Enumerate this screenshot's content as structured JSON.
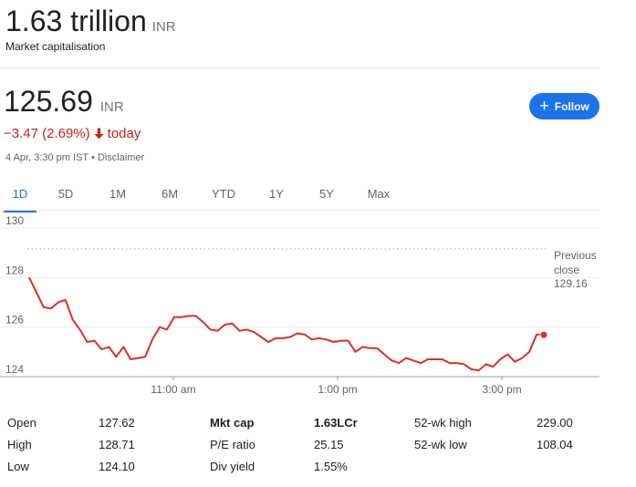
{
  "market_cap": {
    "value": "1.63 trillion",
    "currency": "INR",
    "label": "Market capitalisation"
  },
  "price": {
    "value": "125.69",
    "currency": "INR",
    "change": "−3.47 (2.69%)",
    "change_suffix": "today",
    "arrow_icon": "arrow-down-icon",
    "timestamp": "4 Apr, 3:30 pm IST • Disclaimer",
    "color_negative": "#c5221f"
  },
  "follow_button": {
    "label": "Follow",
    "icon": "plus-icon",
    "color": "#1a73e8"
  },
  "range_tabs": [
    "1D",
    "5D",
    "1M",
    "6M",
    "YTD",
    "1Y",
    "5Y",
    "Max"
  ],
  "selected_tab": "1D",
  "chart_data": {
    "type": "line",
    "y_ticks": [
      "130",
      "128",
      "126",
      "124"
    ],
    "x_ticks": [
      "11:00 am",
      "1:00 pm",
      "3:00 pm"
    ],
    "ylim": [
      124,
      130
    ],
    "previous_close": {
      "label_line1": "Previous",
      "label_line2": "close",
      "value": "129.16"
    },
    "line_color": "#d93025",
    "series": [
      {
        "x": [
          0,
          1,
          2,
          3,
          4,
          5,
          6,
          7,
          8,
          9,
          10,
          11,
          12,
          13,
          14,
          15,
          16,
          17,
          18,
          19,
          20,
          21,
          22,
          23,
          24,
          25,
          26,
          27,
          28,
          29,
          30,
          31,
          32,
          33,
          34,
          35,
          36,
          37,
          38,
          39,
          40,
          41,
          42,
          43,
          44,
          45,
          46,
          47,
          48,
          49,
          50,
          51,
          52,
          53,
          54,
          55,
          56,
          57,
          58,
          59,
          60,
          61,
          62,
          63,
          64,
          65,
          66,
          67,
          68,
          69,
          70,
          71
        ],
        "values": [
          128.0,
          127.4,
          126.8,
          126.75,
          127.0,
          127.1,
          126.3,
          125.9,
          125.4,
          125.45,
          125.1,
          125.2,
          124.8,
          125.2,
          124.7,
          124.75,
          124.8,
          125.5,
          126.0,
          125.9,
          126.4,
          126.4,
          126.45,
          126.45,
          126.2,
          125.9,
          125.85,
          126.1,
          126.15,
          125.85,
          125.9,
          125.8,
          125.6,
          125.4,
          125.55,
          125.55,
          125.6,
          125.75,
          125.7,
          125.5,
          125.55,
          125.5,
          125.4,
          125.45,
          125.45,
          125.0,
          125.2,
          125.15,
          125.15,
          124.9,
          124.65,
          124.55,
          124.75,
          124.65,
          124.55,
          124.7,
          124.7,
          124.7,
          124.55,
          124.55,
          124.5,
          124.3,
          124.25,
          124.5,
          124.4,
          124.7,
          124.9,
          124.6,
          124.75,
          125.0,
          125.7,
          125.69
        ]
      }
    ]
  },
  "stats": {
    "col1": [
      {
        "key": "Open",
        "value": "127.62"
      },
      {
        "key": "High",
        "value": "128.71"
      },
      {
        "key": "Low",
        "value": "124.10"
      }
    ],
    "col2": [
      {
        "key": "Mkt cap",
        "value": "1.63LCr"
      },
      {
        "key": "P/E ratio",
        "value": "25.15"
      },
      {
        "key": "Div yield",
        "value": "1.55%"
      }
    ],
    "col3": [
      {
        "key": "52-wk high",
        "value": "229.00"
      },
      {
        "key": "52-wk low",
        "value": "108.04"
      }
    ]
  }
}
